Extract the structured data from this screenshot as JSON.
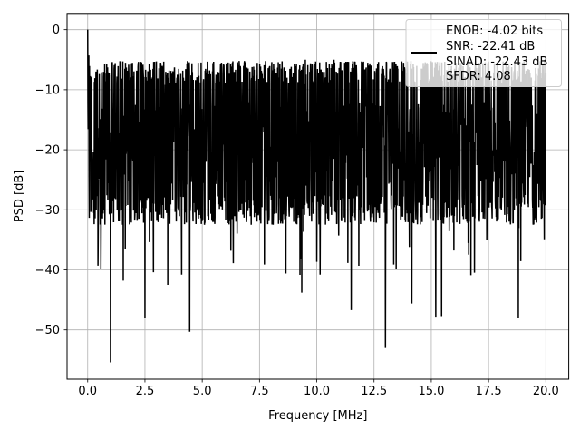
{
  "chart_data": {
    "type": "line",
    "title": "",
    "xlabel": "Frequency [MHz]",
    "ylabel": "PSD [dB]",
    "xlim": [
      -0.9,
      21.0
    ],
    "ylim": [
      -58.2,
      2.7
    ],
    "xticks": [
      0.0,
      2.5,
      5.0,
      7.5,
      10.0,
      12.5,
      15.0,
      17.5,
      20.0
    ],
    "xtick_labels": [
      "0.0",
      "2.5",
      "5.0",
      "7.5",
      "10.0",
      "12.5",
      "15.0",
      "17.5",
      "20.0"
    ],
    "yticks": [
      0,
      -10,
      -20,
      -30,
      -40,
      -50
    ],
    "ytick_labels": [
      "0",
      "−10",
      "−20",
      "−30",
      "−40",
      "−50"
    ],
    "grid": true,
    "legend_position": "top-right",
    "legend_entries": [
      "ENOB: -4.02 bits",
      "SNR: -22.41 dB",
      "SINAD: -22.43 dB",
      "SFDR: 4.08"
    ],
    "series": [
      {
        "color": "#000000",
        "x_start": 0.0,
        "x_end": 20.0,
        "baseline_db": -19,
        "upper_envelope_db": -8,
        "lower_envelope_db": -30,
        "peak": {
          "x": 0.0,
          "y": 0.0
        },
        "notable_points": [
          {
            "x": 0.05,
            "y": -4.3
          },
          {
            "x": 0.1,
            "y": -8.0
          },
          {
            "x": 0.45,
            "y": -39.3
          },
          {
            "x": 1.0,
            "y": -55.4
          },
          {
            "x": 1.55,
            "y": -41.8
          },
          {
            "x": 2.5,
            "y": -48.0
          },
          {
            "x": 3.5,
            "y": -42.5
          },
          {
            "x": 4.1,
            "y": -40.8
          },
          {
            "x": 4.45,
            "y": -50.3
          },
          {
            "x": 4.55,
            "y": -5.6
          },
          {
            "x": 6.25,
            "y": -36.8
          },
          {
            "x": 8.65,
            "y": -40.6
          },
          {
            "x": 9.35,
            "y": -43.8
          },
          {
            "x": 9.5,
            "y": -5.0
          },
          {
            "x": 10.15,
            "y": -40.8
          },
          {
            "x": 10.75,
            "y": -5.0
          },
          {
            "x": 11.5,
            "y": -46.7
          },
          {
            "x": 11.65,
            "y": -5.3
          },
          {
            "x": 13.0,
            "y": -53.0
          },
          {
            "x": 14.15,
            "y": -45.6
          },
          {
            "x": 15.2,
            "y": -47.8
          },
          {
            "x": 15.45,
            "y": -47.7
          },
          {
            "x": 16.6,
            "y": -7.5
          },
          {
            "x": 18.8,
            "y": -48.0
          },
          {
            "x": 19.95,
            "y": -5.0
          }
        ]
      }
    ]
  }
}
